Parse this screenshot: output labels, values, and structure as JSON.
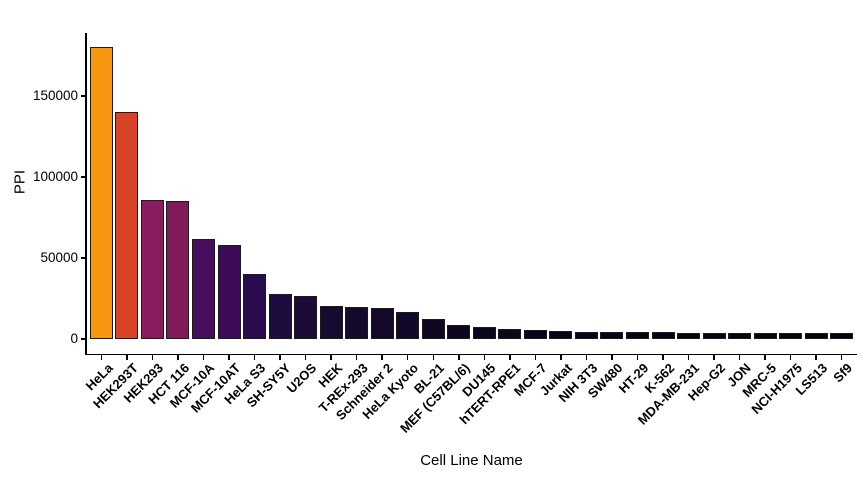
{
  "chart_data": {
    "type": "bar",
    "title": "",
    "xlabel": "Cell Line Name",
    "ylabel": "PPI",
    "categories": [
      "HeLa",
      "HEK293T",
      "HEK293",
      "HCT 116",
      "MCF-10A",
      "MCF-10AT",
      "HeLa S3",
      "SH-SY5Y",
      "U2OS",
      "HEK",
      "T-REx-293",
      "Schneider 2",
      "HeLa Kyoto",
      "BL-21",
      "MEF (C57BL/6)",
      "DU145",
      "hTERT-RPE1",
      "MCF-7",
      "Jurkat",
      "NIH 3T3",
      "SW480",
      "HT-29",
      "K-562",
      "MDA-MB-231",
      "Hep-G2",
      "JON",
      "MRC-5",
      "NCI-H1975",
      "LS513",
      "Sf9"
    ],
    "values": [
      180000,
      140000,
      86000,
      85000,
      62000,
      58000,
      40000,
      28000,
      26500,
      20500,
      20000,
      19000,
      17000,
      12500,
      8500,
      7200,
      6200,
      5800,
      5000,
      4400,
      4300,
      4200,
      4100,
      4000,
      3900,
      3900,
      3800,
      3800,
      3700,
      3700
    ],
    "bar_colors": [
      "#F8970E",
      "#D64327",
      "#8A1C5E",
      "#801A58",
      "#470D5E",
      "#3F0A58",
      "#2A0C4E",
      "#1F0C3E",
      "#1B0B37",
      "#170A30",
      "#15092D",
      "#140929",
      "#120827",
      "#100723",
      "#0E0620",
      "#0D051D",
      "#0C051B",
      "#0B0419",
      "#0A0418",
      "#090316",
      "#080315",
      "#080314",
      "#070313",
      "#070212",
      "#060211",
      "#060210",
      "#05020F",
      "#05020E",
      "#04010E",
      "#04010D"
    ],
    "y_ticks": [
      0,
      50000,
      100000,
      150000
    ],
    "ylim": [
      0,
      189000
    ],
    "grid": false,
    "legend": false,
    "bar_outline_color": "#1b1b1b",
    "axis_color": "#000000",
    "text_color": "#000000",
    "background_color": "#ffffff"
  }
}
